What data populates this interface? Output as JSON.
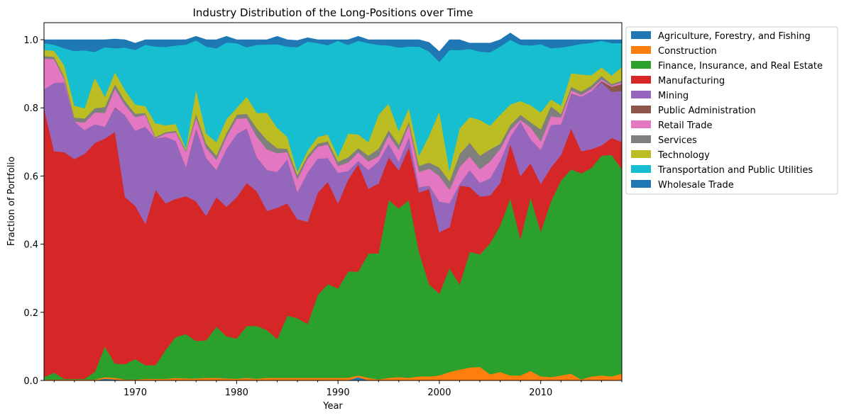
{
  "chart_data": {
    "type": "area",
    "stacked": true,
    "title": "Industry Distribution of the Long-Positions over Time",
    "xlabel": "Year",
    "ylabel": "Fraction of Portfolio",
    "xlim": [
      1961,
      2018
    ],
    "ylim": [
      0,
      1.05
    ],
    "xticks": [
      1970,
      1980,
      1990,
      2000,
      2010
    ],
    "yticks": [
      0.0,
      0.2,
      0.4,
      0.6,
      0.8,
      1.0
    ],
    "legend_position": "outside-top-right",
    "grid": false,
    "x": [
      1961,
      1962,
      1963,
      1964,
      1965,
      1966,
      1967,
      1968,
      1969,
      1970,
      1971,
      1972,
      1973,
      1974,
      1975,
      1976,
      1977,
      1978,
      1979,
      1980,
      1981,
      1982,
      1983,
      1984,
      1985,
      1986,
      1987,
      1988,
      1989,
      1990,
      1991,
      1992,
      1993,
      1994,
      1995,
      1996,
      1997,
      1998,
      1999,
      2000,
      2001,
      2002,
      2003,
      2004,
      2005,
      2006,
      2007,
      2008,
      2009,
      2010,
      2011,
      2012,
      2013,
      2014,
      2015,
      2016,
      2017,
      2018
    ],
    "series": [
      {
        "name": "Agriculture, Forestry, and Fishing",
        "color": "#1f77b4",
        "values": [
          0,
          0,
          0,
          0,
          0,
          0,
          0.005,
          0.003,
          0,
          0,
          0,
          0,
          0,
          0,
          0.002,
          0,
          0,
          0,
          0,
          0,
          0,
          0,
          0,
          0,
          0,
          0,
          0,
          0,
          0,
          0,
          0,
          0.01,
          0,
          0,
          0,
          0,
          0,
          0,
          0,
          0,
          0,
          0,
          0,
          0,
          0,
          0,
          0,
          0,
          0,
          0,
          0,
          0,
          0,
          0,
          0,
          0,
          0,
          0
        ]
      },
      {
        "name": "Construction",
        "color": "#ff7f0e",
        "values": [
          0.003,
          0.003,
          0.003,
          0.003,
          0.003,
          0.003,
          0.005,
          0.005,
          0.003,
          0.003,
          0.005,
          0.005,
          0.005,
          0.008,
          0.004,
          0.006,
          0.008,
          0.008,
          0.006,
          0.005,
          0.008,
          0.005,
          0.008,
          0.008,
          0.008,
          0.008,
          0.008,
          0.008,
          0.008,
          0.008,
          0.008,
          0.005,
          0.008,
          0.003,
          0.008,
          0.01,
          0.008,
          0.012,
          0.012,
          0.015,
          0.025,
          0.032,
          0.038,
          0.04,
          0.018,
          0.025,
          0.015,
          0.015,
          0.028,
          0.012,
          0.01,
          0.015,
          0.02,
          0.003,
          0.012,
          0.015,
          0.012,
          0.02
        ]
      },
      {
        "name": "Finance, Insurance, and Real Estate",
        "color": "#2ca02c",
        "values": [
          0.007,
          0.02,
          0.002,
          0.002,
          0.002,
          0.022,
          0.09,
          0.042,
          0.045,
          0.06,
          0.04,
          0.04,
          0.085,
          0.12,
          0.13,
          0.11,
          0.11,
          0.15,
          0.124,
          0.118,
          0.152,
          0.155,
          0.14,
          0.114,
          0.182,
          0.175,
          0.158,
          0.243,
          0.275,
          0.262,
          0.312,
          0.305,
          0.365,
          0.37,
          0.522,
          0.495,
          0.522,
          0.365,
          0.27,
          0.24,
          0.305,
          0.25,
          0.34,
          0.33,
          0.385,
          0.43,
          0.52,
          0.4,
          0.51,
          0.425,
          0.515,
          0.572,
          0.6,
          0.605,
          0.612,
          0.645,
          0.65,
          0.6
        ]
      },
      {
        "name": "Manufacturing",
        "color": "#d62728",
        "values": [
          0.79,
          0.65,
          0.665,
          0.645,
          0.66,
          0.672,
          0.61,
          0.68,
          0.49,
          0.45,
          0.415,
          0.515,
          0.43,
          0.405,
          0.405,
          0.41,
          0.365,
          0.38,
          0.38,
          0.415,
          0.42,
          0.395,
          0.35,
          0.385,
          0.33,
          0.29,
          0.3,
          0.3,
          0.3,
          0.25,
          0.27,
          0.315,
          0.19,
          0.205,
          0.125,
          0.112,
          0.155,
          0.175,
          0.28,
          0.18,
          0.12,
          0.29,
          0.19,
          0.17,
          0.14,
          0.125,
          0.16,
          0.185,
          0.1,
          0.14,
          0.1,
          0.075,
          0.12,
          0.065,
          0.055,
          0.03,
          0.05,
          0.08
        ]
      },
      {
        "name": "Mining",
        "color": "#9467bd",
        "values": [
          0.055,
          0.2,
          0.205,
          0.11,
          0.07,
          0.055,
          0.035,
          0.07,
          0.24,
          0.22,
          0.285,
          0.15,
          0.195,
          0.17,
          0.085,
          0.21,
          0.17,
          0.08,
          0.17,
          0.185,
          0.16,
          0.1,
          0.12,
          0.105,
          0.13,
          0.08,
          0.145,
          0.1,
          0.07,
          0.09,
          0.025,
          0.01,
          0.055,
          0.065,
          0.04,
          0.025,
          0.03,
          0.015,
          0.01,
          0.09,
          0.07,
          0.005,
          0.05,
          0.04,
          0.05,
          0.065,
          0.02,
          0.16,
          0.07,
          0.1,
          0.125,
          0.09,
          0.1,
          0.16,
          0.17,
          0.185,
          0.135,
          0.15
        ]
      },
      {
        "name": "Public Administration",
        "color": "#8c564b",
        "values": [
          0,
          0,
          0,
          0,
          0,
          0,
          0,
          0.002,
          0,
          0,
          0,
          0,
          0,
          0,
          0,
          0.003,
          0,
          0,
          0,
          0,
          0,
          0,
          0,
          0,
          0,
          0,
          0,
          0,
          0,
          0,
          0,
          0,
          0,
          0,
          0,
          0,
          0,
          0,
          0,
          0,
          0,
          0,
          0,
          0,
          0,
          0,
          0,
          0,
          0,
          0,
          0,
          0,
          0.002,
          0,
          0,
          0.004,
          0.015,
          0.02
        ]
      },
      {
        "name": "Retail Trade",
        "color": "#e377c2",
        "values": [
          0.09,
          0.07,
          0.01,
          0,
          0.022,
          0.035,
          0.04,
          0.055,
          0.03,
          0.04,
          0.035,
          0,
          0.01,
          0.025,
          0.045,
          0.032,
          0.03,
          0.03,
          0.035,
          0.045,
          0.03,
          0.06,
          0.06,
          0.055,
          0.02,
          0.038,
          0.04,
          0.035,
          0.04,
          0.02,
          0.025,
          0.025,
          0.025,
          0.015,
          0.025,
          0.035,
          0.035,
          0.045,
          0.05,
          0.075,
          0.04,
          0.05,
          0.04,
          0.04,
          0.05,
          0.035,
          0.02,
          0.005,
          0.035,
          0.025,
          0.025,
          0.02,
          0.01,
          0.005,
          0.007,
          0.005,
          0.003,
          0.005
        ]
      },
      {
        "name": "Services",
        "color": "#7f7f7f",
        "values": [
          0.007,
          0.007,
          0.007,
          0.012,
          0.012,
          0.012,
          0.018,
          0.013,
          0.012,
          0.01,
          0.005,
          0.005,
          0.004,
          0.005,
          0.005,
          0.012,
          0.012,
          0.012,
          0.012,
          0.012,
          0.013,
          0.025,
          0.028,
          0.015,
          0.01,
          0.012,
          0.009,
          0.009,
          0.009,
          0.012,
          0.015,
          0.012,
          0.017,
          0.022,
          0.015,
          0.015,
          0.01,
          0.018,
          0.018,
          0.025,
          0.025,
          0.038,
          0.04,
          0.04,
          0.035,
          0.015,
          0.015,
          0.015,
          0.015,
          0.035,
          0.03,
          0.01,
          0.01,
          0.01,
          0.01,
          0.01,
          0.005,
          0.005
        ]
      },
      {
        "name": "Technology",
        "color": "#bcbd22",
        "values": [
          0.018,
          0.018,
          0.033,
          0.035,
          0.03,
          0.09,
          0.03,
          0.035,
          0.032,
          0.027,
          0.02,
          0.04,
          0.02,
          0.02,
          0.005,
          0.07,
          0.03,
          0.04,
          0.04,
          0.02,
          0.05,
          0.045,
          0.08,
          0.06,
          0.035,
          0.01,
          0.015,
          0.02,
          0.02,
          0.015,
          0.07,
          0.04,
          0.04,
          0.1,
          0.078,
          0.04,
          0.04,
          0.03,
          0.08,
          0.165,
          0.03,
          0.075,
          0.075,
          0.105,
          0.07,
          0.085,
          0.06,
          0.04,
          0.05,
          0.05,
          0.02,
          0.025,
          0.04,
          0.05,
          0.03,
          0.025,
          0.025,
          0.04
        ]
      },
      {
        "name": "Transportation and Public Utilities",
        "color": "#17becf",
        "values": [
          0.02,
          0.017,
          0.05,
          0.16,
          0.17,
          0.075,
          0.145,
          0.07,
          0.125,
          0.16,
          0.18,
          0.225,
          0.23,
          0.23,
          0.305,
          0.145,
          0.255,
          0.275,
          0.225,
          0.19,
          0.145,
          0.2,
          0.2,
          0.245,
          0.265,
          0.365,
          0.32,
          0.275,
          0.262,
          0.34,
          0.26,
          0.275,
          0.29,
          0.205,
          0.17,
          0.245,
          0.18,
          0.32,
          0.245,
          0.145,
          0.355,
          0.23,
          0.2,
          0.2,
          0.215,
          0.2,
          0.19,
          0.165,
          0.175,
          0.2,
          0.15,
          0.17,
          0.08,
          0.09,
          0.095,
          0.078,
          0.095,
          0.07
        ]
      },
      {
        "name": "Wholesale Trade",
        "color": "#1f77b4",
        "values": [
          0.01,
          0.015,
          0.025,
          0.033,
          0.031,
          0.036,
          0.022,
          0.027,
          0.023,
          0.02,
          0.015,
          0.02,
          0.021,
          0.017,
          0.014,
          0.012,
          0.02,
          0.025,
          0.018,
          0.01,
          0.022,
          0.015,
          0.014,
          0.023,
          0.02,
          0.02,
          0.011,
          0.01,
          0.016,
          0.003,
          0.015,
          0.013,
          0.01,
          0.015,
          0.017,
          0.023,
          0.02,
          0.02,
          0.027,
          0.03,
          0.03,
          0.03,
          0.017,
          0.025,
          0.027,
          0.02,
          0.02,
          0.015,
          0.017,
          0.013,
          0.025,
          0.023,
          0.018,
          0.012,
          0.009,
          0.003,
          0.01,
          0.01
        ]
      }
    ]
  }
}
